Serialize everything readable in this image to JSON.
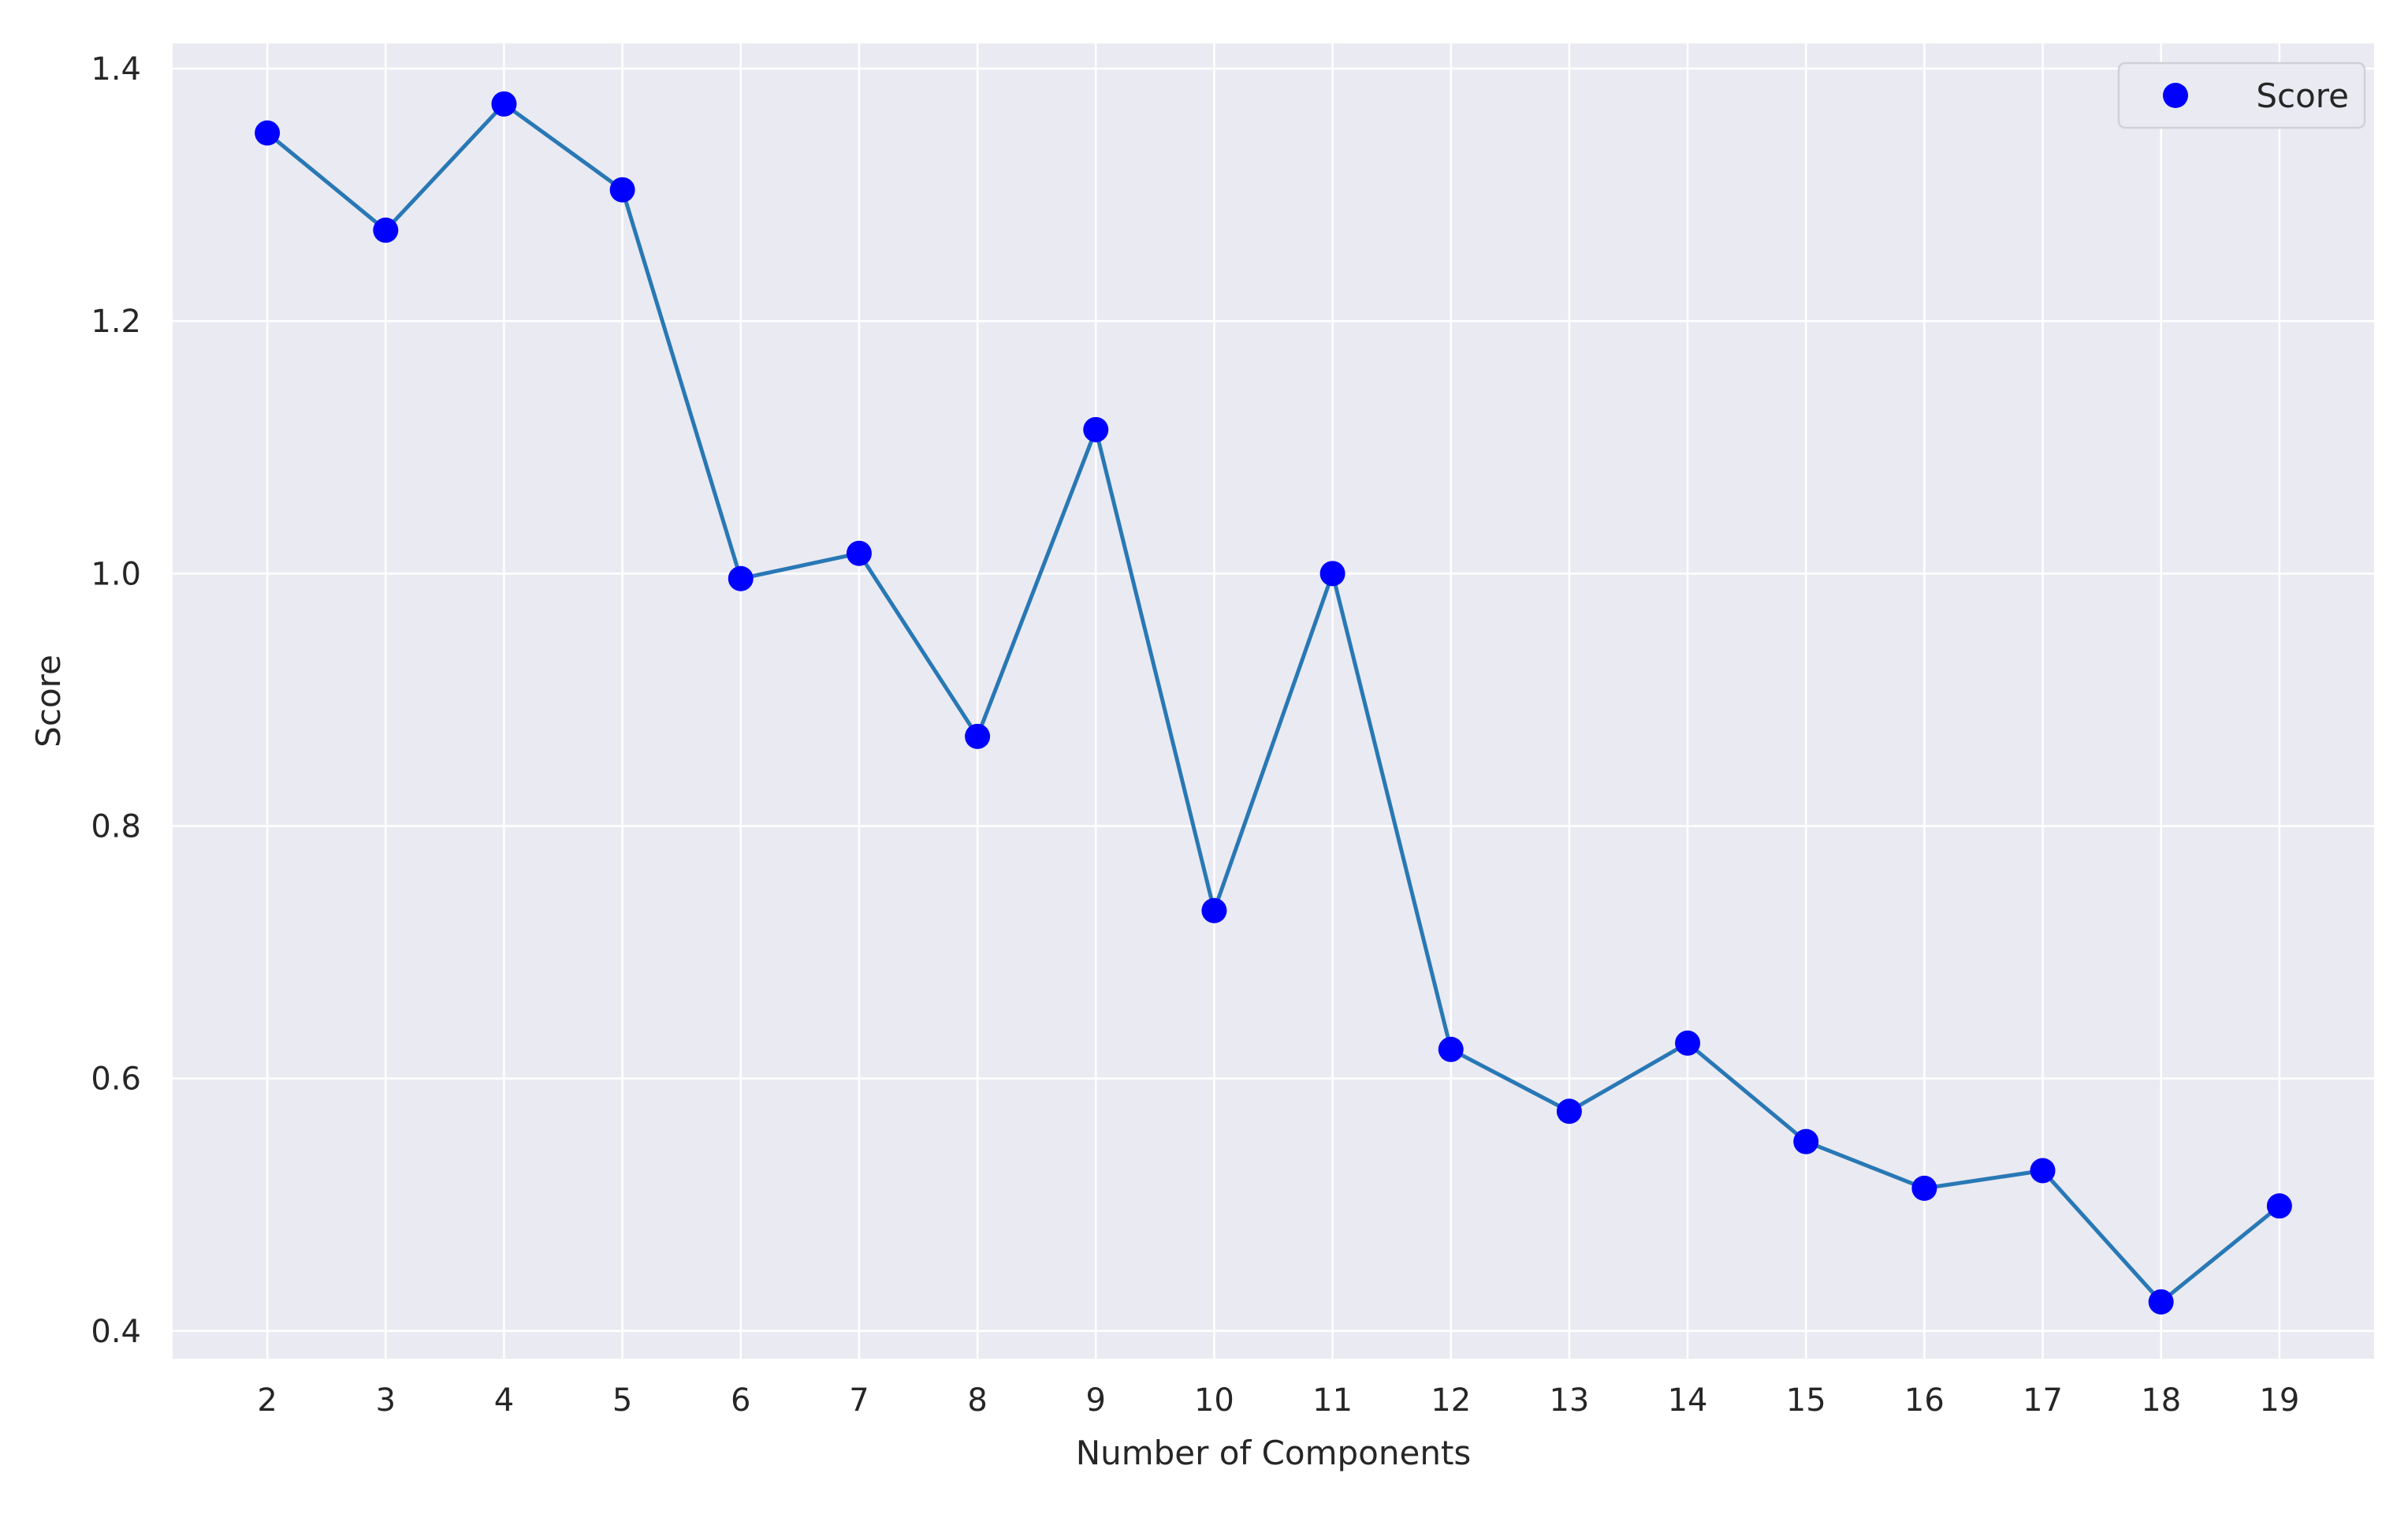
{
  "chart_data": {
    "type": "line",
    "title": "",
    "xlabel": "Number of Components",
    "ylabel": "Score",
    "x": [
      2,
      3,
      4,
      5,
      6,
      7,
      8,
      9,
      10,
      11,
      12,
      13,
      14,
      15,
      16,
      17,
      18,
      19
    ],
    "xticks": [
      "2",
      "3",
      "4",
      "5",
      "6",
      "7",
      "8",
      "9",
      "10",
      "11",
      "12",
      "13",
      "14",
      "15",
      "16",
      "17",
      "18",
      "19"
    ],
    "yticks": [
      "0.4",
      "0.6",
      "0.8",
      "1.0",
      "1.2",
      "1.4"
    ],
    "ytick_values": [
      0.4,
      0.6,
      0.8,
      1.0,
      1.2,
      1.4
    ],
    "xlim": [
      1.2,
      19.8
    ],
    "ylim": [
      0.378,
      1.42
    ],
    "grid": true,
    "legend_position": "top-right",
    "series": [
      {
        "name": "Score",
        "values": [
          1.349,
          1.272,
          1.372,
          1.304,
          0.996,
          1.016,
          0.871,
          1.114,
          0.733,
          1.0,
          0.623,
          0.574,
          0.628,
          0.55,
          0.513,
          0.527,
          0.423,
          0.499
        ],
        "line_color": "#2878b5",
        "marker_color": "#0000ff"
      }
    ],
    "colors": {
      "plot_background": "#eaeaf2",
      "grid": "#ffffff"
    }
  }
}
